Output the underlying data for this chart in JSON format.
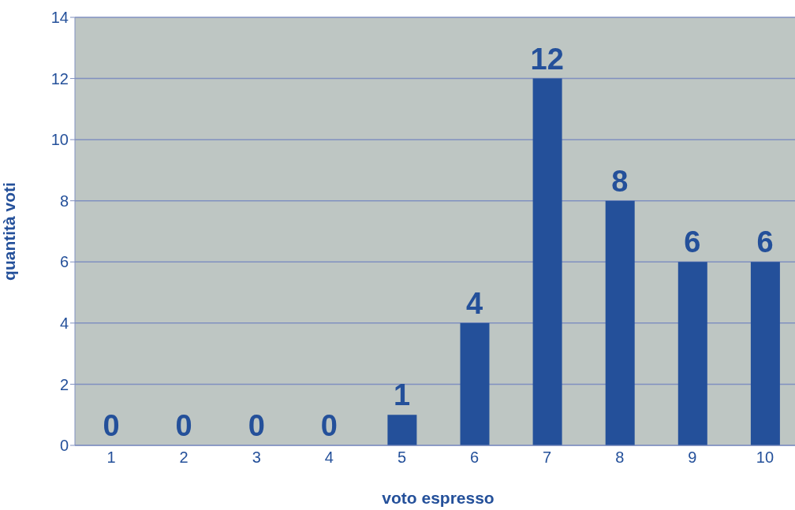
{
  "chart_data": {
    "type": "bar",
    "xlabel": "voto espresso",
    "ylabel": "quantità voti",
    "categories": [
      "1",
      "2",
      "3",
      "4",
      "5",
      "6",
      "7",
      "8",
      "9",
      "10"
    ],
    "values": [
      0,
      0,
      0,
      0,
      1,
      4,
      12,
      8,
      6,
      6
    ],
    "color": "#24509a",
    "ylim": [
      0,
      14
    ],
    "yticks": [
      0,
      2,
      4,
      6,
      8,
      10,
      12,
      14
    ],
    "grid": "y",
    "data_labels": true
  }
}
